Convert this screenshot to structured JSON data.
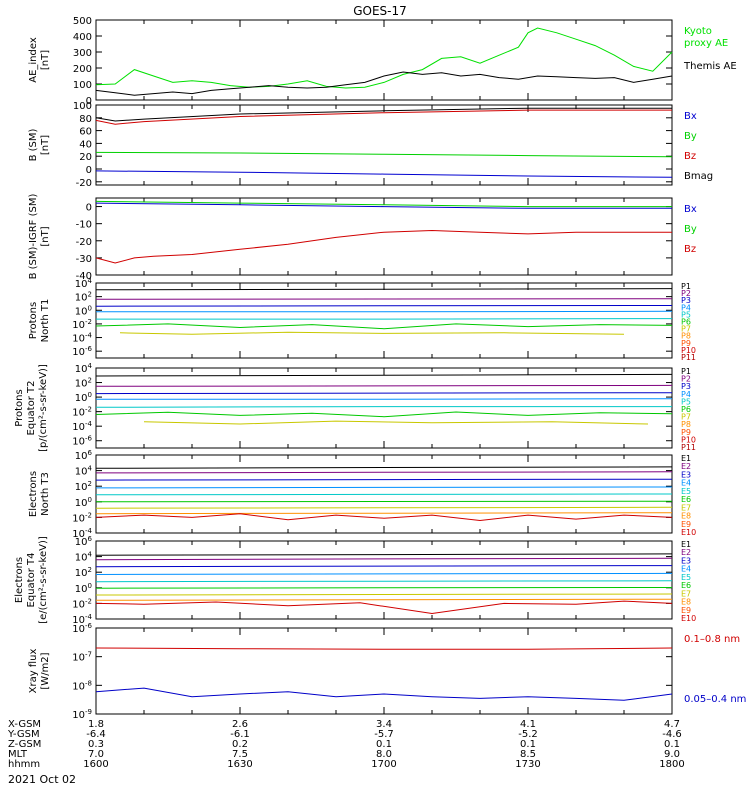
{
  "title": "GOES-17",
  "date_label": "2021 Oct 02",
  "footer": {
    "row_labels": [
      "X-GSM",
      "Y-GSM",
      "Z-GSM",
      "MLT",
      "hhmm"
    ],
    "columns": [
      [
        "1.8",
        "-6.4",
        "0.3",
        "7.0",
        "1600"
      ],
      [
        "2.6",
        "-6.1",
        "0.2",
        "7.5",
        "1630"
      ],
      [
        "3.4",
        "-5.7",
        "0.1",
        "8.0",
        "1700"
      ],
      [
        "4.1",
        "-5.2",
        "0.1",
        "8.5",
        "1730"
      ],
      [
        "4.7",
        "-4.6",
        "0.1",
        "9.0",
        "1800"
      ]
    ]
  },
  "chart_data": [
    {
      "type": "line",
      "ylabel": [
        "AE_index",
        "[nT]"
      ],
      "ylim": [
        0,
        500
      ],
      "yticks": [
        "0",
        "100",
        "200",
        "300",
        "400",
        "500"
      ],
      "series": [
        {
          "name": "Kyoto proxy AE",
          "legend": [
            "Kyoto",
            "proxy AE"
          ],
          "color": "#00e000",
          "x": [
            0,
            4,
            8,
            12,
            16,
            20,
            24,
            28,
            32,
            36,
            40,
            44,
            48,
            52,
            56,
            60,
            64,
            68,
            72,
            76,
            80,
            84,
            88,
            90,
            92,
            96,
            100,
            104,
            108,
            112,
            116,
            120
          ],
          "y": [
            95,
            100,
            190,
            150,
            110,
            120,
            110,
            90,
            80,
            85,
            100,
            120,
            85,
            75,
            80,
            110,
            160,
            190,
            260,
            270,
            230,
            280,
            330,
            420,
            450,
            420,
            380,
            340,
            280,
            210,
            180,
            300
          ]
        },
        {
          "name": "Themis AE",
          "legend": [
            "Themis AE"
          ],
          "color": "#000000",
          "x": [
            0,
            4,
            8,
            12,
            16,
            20,
            24,
            28,
            32,
            36,
            40,
            44,
            48,
            52,
            56,
            60,
            64,
            68,
            72,
            76,
            80,
            84,
            88,
            92,
            96,
            100,
            104,
            108,
            112,
            116,
            120
          ],
          "y": [
            60,
            45,
            30,
            40,
            50,
            40,
            60,
            70,
            80,
            90,
            80,
            75,
            80,
            95,
            110,
            150,
            175,
            160,
            170,
            150,
            160,
            140,
            130,
            150,
            145,
            140,
            135,
            140,
            110,
            130,
            150
          ]
        }
      ]
    },
    {
      "type": "line",
      "ylabel": [
        "B (SM)",
        "[nT]"
      ],
      "ylim": [
        -25,
        100
      ],
      "yticks": [
        "-20",
        "0",
        "20",
        "40",
        "60",
        "80",
        "100"
      ],
      "series": [
        {
          "name": "Bx",
          "color": "#0000d0",
          "x": [
            0,
            30,
            60,
            90,
            120
          ],
          "y": [
            -3,
            -5,
            -8,
            -11,
            -13
          ]
        },
        {
          "name": "By",
          "color": "#00d000",
          "x": [
            0,
            30,
            60,
            90,
            120
          ],
          "y": [
            26,
            25,
            23,
            21,
            19
          ]
        },
        {
          "name": "Bz",
          "color": "#d00000",
          "x": [
            0,
            4,
            10,
            30,
            60,
            90,
            120
          ],
          "y": [
            76,
            70,
            74,
            82,
            88,
            92,
            92
          ]
        },
        {
          "name": "Bmag",
          "color": "#000000",
          "x": [
            0,
            4,
            10,
            30,
            60,
            90,
            120
          ],
          "y": [
            80,
            75,
            78,
            86,
            91,
            95,
            95
          ]
        }
      ]
    },
    {
      "type": "line",
      "ylabel": [
        "B (SM)-IGRF (SM)",
        "[nT]"
      ],
      "ylim": [
        -40,
        5
      ],
      "yticks": [
        "-40",
        "-30",
        "-20",
        "-10",
        "0"
      ],
      "series": [
        {
          "name": "Bx",
          "color": "#0000d0",
          "x": [
            0,
            30,
            60,
            90,
            120
          ],
          "y": [
            2,
            1,
            0,
            -1,
            -1
          ]
        },
        {
          "name": "By",
          "color": "#00d000",
          "x": [
            0,
            30,
            60,
            90,
            120
          ],
          "y": [
            3,
            2,
            1,
            0,
            0
          ]
        },
        {
          "name": "Bz",
          "color": "#d00000",
          "x": [
            0,
            4,
            8,
            12,
            20,
            30,
            40,
            50,
            60,
            70,
            80,
            90,
            100,
            110,
            120
          ],
          "y": [
            -30,
            -33,
            -30,
            -29,
            -28,
            -25,
            -22,
            -18,
            -15,
            -14,
            -15,
            -16,
            -15,
            -15,
            -15
          ]
        }
      ]
    },
    {
      "type": "line",
      "ylabel": [
        "Protons",
        "North T1"
      ],
      "ylog": true,
      "ylim": [
        -7,
        4
      ],
      "yticks": [
        "10^-6",
        "10^-4",
        "10^-2",
        "10^0",
        "10^2",
        "10^4"
      ],
      "legend": [
        "P1",
        "P2",
        "P3",
        "P4",
        "P5",
        "P6",
        "P7",
        "P8",
        "P9",
        "P10",
        "P11"
      ],
      "series": [
        {
          "name": "P1",
          "color": "#000000",
          "x": [
            0,
            60,
            120
          ],
          "y": [
            1000,
            1200,
            1500
          ]
        },
        {
          "name": "P2",
          "color": "#7f007f",
          "x": [
            0,
            60,
            120
          ],
          "y": [
            40,
            45,
            50
          ]
        },
        {
          "name": "P3",
          "color": "#0000c8",
          "x": [
            0,
            60,
            120
          ],
          "y": [
            4,
            4.5,
            5
          ]
        },
        {
          "name": "P4",
          "color": "#0090ff",
          "x": [
            0,
            60,
            120
          ],
          "y": [
            0.6,
            0.6,
            0.7
          ]
        },
        {
          "name": "P5",
          "color": "#00c8c8",
          "x": [
            0,
            60,
            120
          ],
          "y": [
            0.05,
            0.05,
            0.06
          ]
        },
        {
          "name": "P6",
          "color": "#00c800",
          "x": [
            0,
            15,
            30,
            45,
            60,
            75,
            90,
            105,
            120
          ],
          "y": [
            0.005,
            0.01,
            0.003,
            0.008,
            0.002,
            0.01,
            0.004,
            0.008,
            0.006
          ]
        },
        {
          "name": "P7",
          "color": "#c8c800",
          "x": [
            5,
            20,
            40,
            60,
            85,
            110
          ],
          "y": [
            0.0005,
            0.0003,
            0.0006,
            0.0004,
            0.0005,
            0.0003
          ]
        }
      ]
    },
    {
      "type": "line",
      "ylabel": [
        "Protons",
        "Equator T2",
        "[p/(cm²-s-sr-keV)]"
      ],
      "ylog": true,
      "ylim": [
        -7,
        4
      ],
      "yticks": [
        "10^-6",
        "10^-4",
        "10^-2",
        "10^0",
        "10^2",
        "10^4"
      ],
      "legend": [
        "P1",
        "P2",
        "P3",
        "P4",
        "P5",
        "P6",
        "P7",
        "P8",
        "P9",
        "P10",
        "P11"
      ],
      "series": [
        {
          "name": "P1",
          "color": "#000000",
          "x": [
            0,
            60,
            120
          ],
          "y": [
            800,
            1000,
            1300
          ]
        },
        {
          "name": "P2",
          "color": "#7f007f",
          "x": [
            0,
            60,
            120
          ],
          "y": [
            30,
            35,
            40
          ]
        },
        {
          "name": "P3",
          "color": "#0000c8",
          "x": [
            0,
            60,
            120
          ],
          "y": [
            3,
            3.5,
            4
          ]
        },
        {
          "name": "P4",
          "color": "#0090ff",
          "x": [
            0,
            60,
            120
          ],
          "y": [
            0.5,
            0.5,
            0.6
          ]
        },
        {
          "name": "P5",
          "color": "#00c8c8",
          "x": [
            0,
            60,
            120
          ],
          "y": [
            0.04,
            0.05,
            0.05
          ]
        },
        {
          "name": "P6",
          "color": "#00c800",
          "x": [
            0,
            15,
            30,
            45,
            60,
            75,
            90,
            105,
            120
          ],
          "y": [
            0.004,
            0.008,
            0.003,
            0.006,
            0.002,
            0.009,
            0.003,
            0.007,
            0.005
          ]
        },
        {
          "name": "P7",
          "color": "#c8c800",
          "x": [
            10,
            30,
            50,
            70,
            95,
            115
          ],
          "y": [
            0.0004,
            0.0002,
            0.0005,
            0.0003,
            0.0004,
            0.0002
          ]
        }
      ]
    },
    {
      "type": "line",
      "ylabel": [
        "Electrons",
        "North T3"
      ],
      "ylog": true,
      "ylim": [
        -4,
        6
      ],
      "yticks": [
        "10^-4",
        "10^-2",
        "10^0",
        "10^2",
        "10^4",
        "10^6"
      ],
      "legend": [
        "E1",
        "E2",
        "E3",
        "E4",
        "E5",
        "E6",
        "E7",
        "E8",
        "E9",
        "E10"
      ],
      "series": [
        {
          "name": "E1",
          "color": "#000000",
          "x": [
            0,
            60,
            120
          ],
          "y": [
            20000,
            25000,
            30000
          ]
        },
        {
          "name": "E2",
          "color": "#7f007f",
          "x": [
            0,
            60,
            120
          ],
          "y": [
            5000,
            6000,
            7000
          ]
        },
        {
          "name": "E3",
          "color": "#0000c8",
          "x": [
            0,
            60,
            120
          ],
          "y": [
            600,
            700,
            800
          ]
        },
        {
          "name": "E4",
          "color": "#0090ff",
          "x": [
            0,
            60,
            120
          ],
          "y": [
            60,
            70,
            80
          ]
        },
        {
          "name": "E5",
          "color": "#00c8c8",
          "x": [
            0,
            60,
            120
          ],
          "y": [
            8,
            9,
            10
          ]
        },
        {
          "name": "E6",
          "color": "#00c800",
          "x": [
            0,
            60,
            120
          ],
          "y": [
            1,
            1.1,
            1.2
          ]
        },
        {
          "name": "E7",
          "color": "#c8c800",
          "x": [
            0,
            60,
            120
          ],
          "y": [
            0.15,
            0.17,
            0.2
          ]
        },
        {
          "name": "E8",
          "color": "#ff9000",
          "x": [
            0,
            60,
            120
          ],
          "y": [
            0.03,
            0.035,
            0.04
          ]
        },
        {
          "name": "E9",
          "color": "#d00000",
          "x": [
            0,
            10,
            20,
            30,
            40,
            50,
            60,
            70,
            80,
            90,
            100,
            110,
            120
          ],
          "y": [
            0.01,
            0.02,
            0.01,
            0.03,
            0.005,
            0.02,
            0.008,
            0.02,
            0.004,
            0.02,
            0.006,
            0.02,
            0.01
          ]
        }
      ]
    },
    {
      "type": "line",
      "ylabel": [
        "Electrons",
        "Equator T4",
        "[e/(cm²-s-sr-keV)]"
      ],
      "ylog": true,
      "ylim": [
        -4,
        6
      ],
      "yticks": [
        "10^-4",
        "10^-2",
        "10^0",
        "10^2",
        "10^4",
        "10^6"
      ],
      "legend": [
        "E1",
        "E2",
        "E3",
        "E4",
        "E5",
        "E6",
        "E7",
        "E8",
        "E9",
        "E10"
      ],
      "series": [
        {
          "name": "E1",
          "color": "#000000",
          "x": [
            0,
            60,
            120
          ],
          "y": [
            15000,
            18000,
            22000
          ]
        },
        {
          "name": "E2",
          "color": "#7f007f",
          "x": [
            0,
            60,
            120
          ],
          "y": [
            4000,
            5000,
            6000
          ]
        },
        {
          "name": "E3",
          "color": "#0000c8",
          "x": [
            0,
            60,
            120
          ],
          "y": [
            500,
            600,
            700
          ]
        },
        {
          "name": "E4",
          "color": "#0090ff",
          "x": [
            0,
            60,
            120
          ],
          "y": [
            50,
            60,
            70
          ]
        },
        {
          "name": "E5",
          "color": "#00c8c8",
          "x": [
            0,
            60,
            120
          ],
          "y": [
            6,
            7,
            8
          ]
        },
        {
          "name": "E6",
          "color": "#00c800",
          "x": [
            0,
            60,
            120
          ],
          "y": [
            0.9,
            1,
            1.1
          ]
        },
        {
          "name": "E7",
          "color": "#c8c800",
          "x": [
            0,
            60,
            120
          ],
          "y": [
            0.12,
            0.14,
            0.16
          ]
        },
        {
          "name": "E8",
          "color": "#ff9000",
          "x": [
            0,
            60,
            120
          ],
          "y": [
            0.025,
            0.03,
            0.035
          ]
        },
        {
          "name": "E9",
          "color": "#d00000",
          "x": [
            0,
            10,
            25,
            40,
            55,
            70,
            85,
            100,
            110,
            120
          ],
          "y": [
            0.01,
            0.008,
            0.015,
            0.005,
            0.012,
            0.0005,
            0.01,
            0.008,
            0.02,
            0.01
          ]
        }
      ]
    },
    {
      "type": "line",
      "ylabel": [
        "Xray flux",
        "[W/m2]"
      ],
      "ylog": true,
      "ylim": [
        -9,
        -6
      ],
      "yticks": [
        "10^-9",
        "10^-8",
        "10^-7",
        "10^-6"
      ],
      "series": [
        {
          "name": "0.1-0.8 nm",
          "legend": [
            "0.1–0.8 nm"
          ],
          "color": "#d00000",
          "x": [
            0,
            30,
            60,
            90,
            120
          ],
          "y": [
            2e-07,
            1.9e-07,
            1.8e-07,
            1.8e-07,
            2e-07
          ]
        },
        {
          "name": "0.05-0.4 nm",
          "legend": [
            "0.05–0.4 nm"
          ],
          "color": "#0000c8",
          "x": [
            0,
            10,
            20,
            30,
            40,
            50,
            60,
            70,
            80,
            90,
            100,
            110,
            120
          ],
          "y": [
            6e-09,
            8e-09,
            4e-09,
            5e-09,
            6e-09,
            4e-09,
            5e-09,
            4e-09,
            3.5e-09,
            4e-09,
            3.5e-09,
            3e-09,
            5e-09
          ]
        }
      ]
    }
  ]
}
